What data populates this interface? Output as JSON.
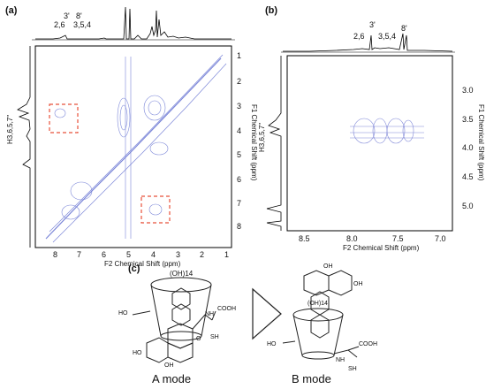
{
  "panel_a": {
    "label": "(a)",
    "top_peaks": [
      "3'",
      "8'",
      "2,6",
      "3,5,4"
    ],
    "side_label": "H3,6,5,7''",
    "right_ticks": [
      "1",
      "2",
      "3",
      "4",
      "5",
      "6",
      "7",
      "8"
    ],
    "bottom_ticks": [
      "8",
      "7",
      "6",
      "5",
      "4",
      "3",
      "2",
      "1"
    ],
    "x_title": "F2 Chemical Shift (ppm)",
    "y_title": "F1 Chemical Shift (ppm)"
  },
  "panel_b": {
    "label": "(b)",
    "top_peaks": [
      "2,6",
      "3'",
      "3,5,4",
      "8'"
    ],
    "side_label": "H3,6,5,7''",
    "right_ticks": [
      "3.0",
      "3.5",
      "4.0",
      "4.5",
      "5.0"
    ],
    "bottom_ticks": [
      "8.5",
      "8.0",
      "7.5",
      "7.0"
    ],
    "x_title": "F2 Chemical Shift (ppm)",
    "y_title": "F1 Chemical Shift (ppm)"
  },
  "panel_c": {
    "label": "(c)",
    "oh14_a": "(OH)14",
    "oh14_b": "(OH)14",
    "cooh_a": "COOH",
    "cooh_b": "COOH",
    "nh_a": "NH",
    "nh_b": "NH",
    "sh_a": "SH",
    "sh_b": "SH",
    "ho_a1": "HO",
    "ho_a2": "HO",
    "oh_a": "OH",
    "ho_b1": "HO",
    "oh_b1": "OH",
    "oh_b2": "OH",
    "o_label": "O",
    "mode_a": "A mode",
    "mode_b": "B mode"
  }
}
